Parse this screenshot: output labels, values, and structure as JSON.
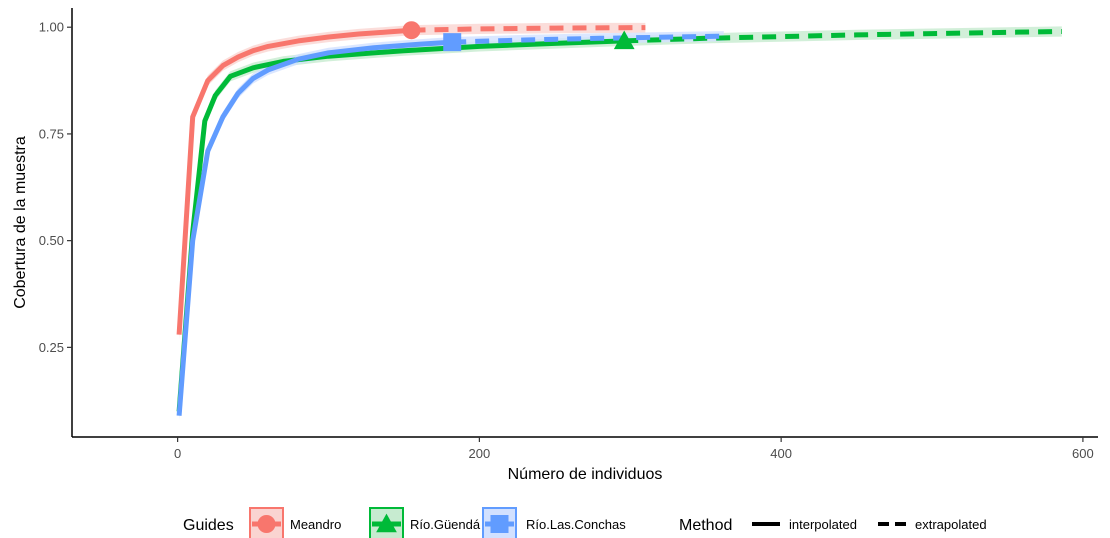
{
  "chart_data": {
    "type": "line",
    "xlabel": "Número de individuos",
    "ylabel": "Cobertura de la muestra",
    "xlim": [
      -70,
      610
    ],
    "ylim": [
      0.04,
      1.045
    ],
    "x_ticks": [
      0,
      200,
      400,
      600
    ],
    "x_tick_labels": [
      "0",
      "200",
      "400",
      "600"
    ],
    "y_ticks": [
      0.25,
      0.5,
      0.75,
      1.0
    ],
    "y_tick_labels": [
      "0.25",
      "0.50",
      "0.75",
      "1.00"
    ],
    "grid": false,
    "legend_position": "bottom",
    "confidence_band_halfwidth": 0.012,
    "series": [
      {
        "name": "Meandro",
        "color": "#F8766D",
        "band_color": "#FAD4D1",
        "marker": "circle",
        "observed": [
          155,
          0.993
        ],
        "interpolated": {
          "x": [
            1,
            10,
            20,
            30,
            40,
            50,
            60,
            80,
            100,
            120,
            140,
            155
          ],
          "y": [
            0.28,
            0.79,
            0.875,
            0.91,
            0.93,
            0.945,
            0.955,
            0.968,
            0.977,
            0.984,
            0.989,
            0.993
          ]
        },
        "extrapolated": {
          "x": [
            155,
            200,
            250,
            310
          ],
          "y": [
            0.993,
            0.996,
            0.998,
            0.999
          ]
        }
      },
      {
        "name": "Río.Güendá",
        "color": "#00BA38",
        "band_color": "#C7EBD0",
        "marker": "triangle",
        "observed": [
          296,
          0.968
        ],
        "interpolated": {
          "x": [
            1,
            10,
            18,
            25,
            35,
            50,
            70,
            100,
            150,
            200,
            250,
            296
          ],
          "y": [
            0.1,
            0.52,
            0.78,
            0.84,
            0.885,
            0.905,
            0.92,
            0.932,
            0.945,
            0.955,
            0.962,
            0.968
          ]
        },
        "extrapolated": {
          "x": [
            296,
            350,
            400,
            450,
            500,
            550,
            586
          ],
          "y": [
            0.968,
            0.974,
            0.978,
            0.982,
            0.985,
            0.988,
            0.99
          ]
        }
      },
      {
        "name": "Río.Las.Conchas",
        "color": "#619CFF",
        "band_color": "#D2E1FF",
        "marker": "square",
        "observed": [
          182,
          0.965
        ],
        "interpolated": {
          "x": [
            1,
            10,
            20,
            30,
            40,
            50,
            60,
            80,
            100,
            130,
            160,
            182
          ],
          "y": [
            0.09,
            0.5,
            0.71,
            0.79,
            0.845,
            0.88,
            0.9,
            0.925,
            0.94,
            0.952,
            0.96,
            0.965
          ]
        },
        "extrapolated": {
          "x": [
            182,
            230,
            280,
            330,
            362
          ],
          "y": [
            0.965,
            0.97,
            0.974,
            0.977,
            0.979
          ]
        }
      }
    ]
  },
  "legend": {
    "guides_title": "Guides",
    "method_title": "Method",
    "items": [
      {
        "label": "Meandro",
        "color": "#F8766D",
        "band_color": "#FAD4D1",
        "marker": "circle"
      },
      {
        "label": "Río.Güendá",
        "color": "#00BA38",
        "band_color": "#C7EBD0",
        "marker": "triangle"
      },
      {
        "label": "Río.Las.Conchas",
        "color": "#619CFF",
        "band_color": "#D2E1FF",
        "marker": "square"
      }
    ],
    "methods": [
      {
        "label": "interpolated",
        "style": "solid"
      },
      {
        "label": "extrapolated",
        "style": "dashed"
      }
    ]
  }
}
